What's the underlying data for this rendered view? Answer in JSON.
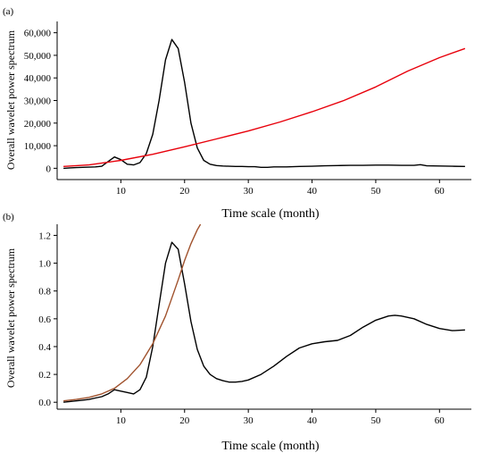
{
  "chart_data": [
    {
      "type": "line",
      "panel_label": "(a)",
      "xlabel": "Time scale (month)",
      "ylabel": "Overall wavelet power spectrum",
      "xlim": [
        0,
        65
      ],
      "ylim": [
        -5000,
        65000
      ],
      "xticks": [
        10,
        20,
        30,
        40,
        50,
        60
      ],
      "yticks": [
        0,
        10000,
        20000,
        30000,
        40000,
        50000,
        60000
      ],
      "ytick_labels": [
        "0",
        "10,000",
        "20,000",
        "30,000",
        "40,000",
        "50,000",
        "60,000"
      ],
      "grid": false,
      "series": [
        {
          "color": "#000000",
          "x": [
            1,
            2,
            3,
            4,
            5,
            6,
            7,
            8,
            9,
            10,
            11,
            12,
            13,
            14,
            15,
            16,
            17,
            18,
            19,
            20,
            21,
            22,
            23,
            24,
            25,
            26,
            27,
            28,
            29,
            30,
            31,
            32,
            33,
            34,
            35,
            36,
            38,
            40,
            42,
            44,
            46,
            48,
            50,
            52,
            54,
            56,
            57,
            58,
            60,
            62,
            64
          ],
          "y": [
            0,
            200,
            300,
            400,
            500,
            600,
            900,
            3000,
            5000,
            3800,
            1800,
            1500,
            2500,
            6500,
            15000,
            30000,
            48000,
            57000,
            53000,
            38000,
            20000,
            9000,
            3500,
            1800,
            1200,
            1000,
            900,
            800,
            800,
            700,
            700,
            400,
            400,
            600,
            600,
            600,
            800,
            900,
            1100,
            1200,
            1300,
            1300,
            1400,
            1400,
            1300,
            1300,
            1600,
            1100,
            1000,
            900,
            800
          ]
        },
        {
          "color": "#e8000b",
          "x": [
            1,
            5,
            10,
            15,
            20,
            25,
            30,
            35,
            40,
            45,
            50,
            55,
            60,
            64
          ],
          "y": [
            800,
            1500,
            3500,
            6200,
            9500,
            13000,
            16500,
            20500,
            25000,
            30000,
            36000,
            43000,
            49000,
            53000
          ]
        }
      ]
    },
    {
      "type": "line",
      "panel_label": "(b)",
      "xlabel": "Time scale (month)",
      "ylabel": "Overall wavelet power spectrum",
      "xlim": [
        0,
        65
      ],
      "ylim": [
        -0.05,
        1.28
      ],
      "xticks": [
        10,
        20,
        30,
        40,
        50,
        60
      ],
      "yticks": [
        0.0,
        0.2,
        0.4,
        0.6,
        0.8,
        1.0,
        1.2
      ],
      "ytick_labels": [
        "0.0",
        "0.2",
        "0.4",
        "0.6",
        "0.8",
        "1.0",
        "1.2"
      ],
      "grid": false,
      "series": [
        {
          "color": "#000000",
          "x": [
            1,
            2,
            3,
            4,
            5,
            6,
            7,
            8,
            9,
            10,
            11,
            12,
            13,
            14,
            15,
            16,
            17,
            18,
            19,
            20,
            21,
            22,
            23,
            24,
            25,
            26,
            27,
            28,
            29,
            30,
            32,
            34,
            36,
            38,
            40,
            42,
            44,
            46,
            48,
            50,
            52,
            53,
            54,
            56,
            58,
            60,
            62,
            64
          ],
          "y": [
            0.0,
            0.005,
            0.01,
            0.015,
            0.02,
            0.03,
            0.04,
            0.06,
            0.09,
            0.08,
            0.07,
            0.06,
            0.09,
            0.18,
            0.4,
            0.7,
            1.0,
            1.15,
            1.1,
            0.85,
            0.58,
            0.38,
            0.26,
            0.2,
            0.17,
            0.155,
            0.145,
            0.145,
            0.15,
            0.16,
            0.2,
            0.26,
            0.33,
            0.39,
            0.42,
            0.435,
            0.445,
            0.48,
            0.54,
            0.59,
            0.62,
            0.625,
            0.62,
            0.6,
            0.56,
            0.53,
            0.515,
            0.52
          ]
        },
        {
          "color": "#a0522d",
          "x": [
            1,
            3,
            5,
            7,
            9,
            11,
            13,
            15,
            17,
            19,
            20,
            21,
            22,
            22.5
          ],
          "y": [
            0.01,
            0.02,
            0.035,
            0.06,
            0.1,
            0.17,
            0.27,
            0.42,
            0.62,
            0.88,
            1.02,
            1.14,
            1.24,
            1.28
          ]
        }
      ]
    }
  ]
}
